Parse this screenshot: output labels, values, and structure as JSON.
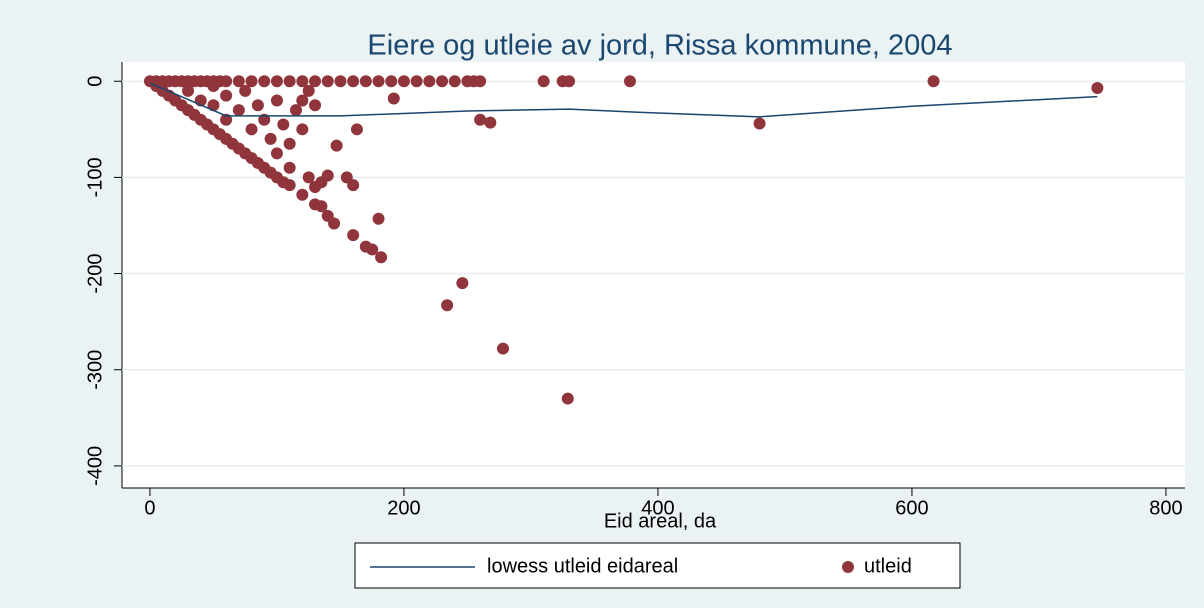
{
  "chart_data": {
    "type": "scatter",
    "title": "Eiere og utleie av jord, Rissa kommune, 2004",
    "x_label": "Eid areal, da",
    "xlim": [
      -22,
      815
    ],
    "ylim": [
      -423,
      20
    ],
    "xticks": [
      0,
      200,
      400,
      600,
      800
    ],
    "yticks": [
      0,
      -100,
      -200,
      -300,
      -400
    ],
    "grid": true,
    "legend": "bottom",
    "series": [
      {
        "name": "lowess utleid eidareal",
        "color": "#1a476f",
        "kind": "line",
        "x": [
          0,
          60,
          150,
          250,
          330,
          380,
          480,
          600,
          746
        ],
        "values": [
          -2,
          -36,
          -36,
          -31,
          -29,
          -32,
          -37,
          -26,
          -16
        ]
      },
      {
        "name": "utleid",
        "color": "#90353b",
        "kind": "scatter",
        "x": [
          0,
          5,
          10,
          15,
          20,
          25,
          30,
          35,
          40,
          45,
          50,
          55,
          60,
          70,
          80,
          90,
          100,
          110,
          120,
          130,
          140,
          150,
          160,
          170,
          180,
          190,
          200,
          210,
          220,
          230,
          240,
          250,
          255,
          260,
          310,
          325,
          330,
          378,
          617,
          746,
          480,
          260,
          268,
          192,
          147,
          163,
          155,
          160,
          180,
          182,
          170,
          175,
          160,
          234,
          246,
          278,
          329,
          5,
          10,
          15,
          20,
          25,
          30,
          35,
          40,
          45,
          50,
          55,
          60,
          65,
          70,
          75,
          80,
          85,
          90,
          95,
          100,
          105,
          110,
          120,
          130,
          140,
          145,
          30,
          40,
          50,
          50,
          60,
          60,
          70,
          75,
          80,
          85,
          90,
          95,
          100,
          100,
          105,
          110,
          110,
          115,
          120,
          120,
          125,
          130,
          130,
          135,
          140,
          135,
          125
        ],
        "values": [
          0,
          0,
          0,
          0,
          0,
          0,
          0,
          0,
          0,
          0,
          0,
          0,
          0,
          0,
          0,
          0,
          0,
          0,
          0,
          0,
          0,
          0,
          0,
          0,
          0,
          0,
          0,
          0,
          0,
          0,
          0,
          0,
          0,
          0,
          0,
          0,
          0,
          0,
          0,
          -7,
          -44,
          -40,
          -43,
          -18,
          -67,
          -50,
          -100,
          -108,
          -143,
          -183,
          -172,
          -175,
          -160,
          -233,
          -210,
          -278,
          -330,
          -5,
          -10,
          -15,
          -20,
          -25,
          -30,
          -35,
          -40,
          -45,
          -50,
          -55,
          -60,
          -65,
          -70,
          -75,
          -80,
          -85,
          -90,
          -95,
          -100,
          -105,
          -108,
          -118,
          -128,
          -140,
          -148,
          -10,
          -20,
          -5,
          -25,
          -15,
          -40,
          -30,
          -10,
          -50,
          -25,
          -40,
          -60,
          -20,
          -75,
          -45,
          -65,
          -90,
          -30,
          -20,
          -50,
          -100,
          -110,
          -25,
          -105,
          -98,
          -130,
          -10
        ]
      }
    ]
  }
}
